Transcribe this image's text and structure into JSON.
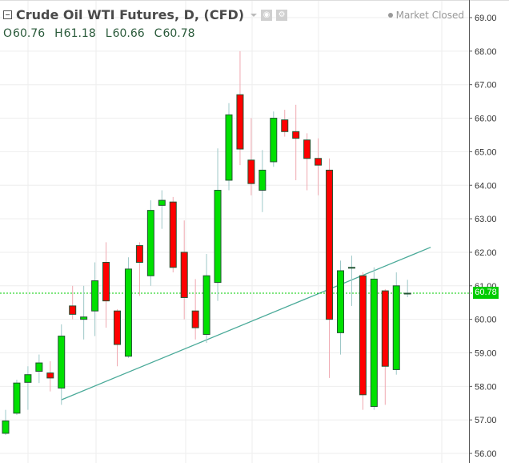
{
  "header": {
    "title": "Crude Oil WTI Futures, D, (CFD)",
    "collapse_icon": "minus-square-icon",
    "visibility_icon": "eye-icon",
    "settings_icon": "gear-icon",
    "ohlc": {
      "open_label": "O",
      "open": "60.76",
      "high_label": "H",
      "high": "61.18",
      "low_label": "L",
      "low": "60.66",
      "close_label": "C",
      "close": "60.78"
    },
    "market_status": "Market Closed"
  },
  "colors": {
    "up": "#00e000",
    "down": "#ff0000",
    "border": "#225533",
    "up_wick": "#9ec8c8",
    "down_wick": "#f0a8b0",
    "trendline": "#4aaa99",
    "price_line": "#00cc00",
    "grid": "#eeeeee"
  },
  "last_price_label": "60.78",
  "chart_data": {
    "type": "candlestick",
    "title": "Crude Oil WTI Futures, D, (CFD)",
    "timeframe": "D",
    "xlabel": "",
    "ylabel": "",
    "ylim": [
      55.75,
      69.3
    ],
    "y_ticks": [
      "69.00",
      "68.00",
      "67.00",
      "66.00",
      "65.00",
      "64.00",
      "63.00",
      "62.00",
      "61.00",
      "60.00",
      "59.00",
      "58.00",
      "57.00",
      "56.00"
    ],
    "grid": true,
    "last_price": 60.78,
    "candles": [
      {
        "o": 56.6,
        "h": 57.3,
        "l": 56.55,
        "c": 56.97
      },
      {
        "o": 57.2,
        "h": 58.2,
        "l": 57.15,
        "c": 58.1
      },
      {
        "o": 58.12,
        "h": 58.6,
        "l": 57.3,
        "c": 58.35
      },
      {
        "o": 58.45,
        "h": 58.95,
        "l": 58.1,
        "c": 58.7
      },
      {
        "o": 58.4,
        "h": 58.75,
        "l": 57.85,
        "c": 58.25
      },
      {
        "o": 57.95,
        "h": 59.85,
        "l": 57.45,
        "c": 59.5
      },
      {
        "o": 60.4,
        "h": 61.0,
        "l": 60.0,
        "c": 60.15
      },
      {
        "o": 60.0,
        "h": 61.0,
        "l": 59.4,
        "c": 60.07
      },
      {
        "o": 60.25,
        "h": 61.7,
        "l": 59.5,
        "c": 61.15
      },
      {
        "o": 61.7,
        "h": 62.3,
        "l": 59.75,
        "c": 60.55
      },
      {
        "o": 60.25,
        "h": 60.3,
        "l": 58.6,
        "c": 59.25
      },
      {
        "o": 58.9,
        "h": 61.85,
        "l": 58.85,
        "c": 61.5
      },
      {
        "o": 62.2,
        "h": 62.3,
        "l": 60.7,
        "c": 61.7
      },
      {
        "o": 61.3,
        "h": 63.55,
        "l": 61.0,
        "c": 63.25
      },
      {
        "o": 63.4,
        "h": 63.85,
        "l": 62.7,
        "c": 63.55
      },
      {
        "o": 63.5,
        "h": 63.65,
        "l": 61.4,
        "c": 61.55
      },
      {
        "o": 62.0,
        "h": 62.95,
        "l": 60.0,
        "c": 60.65
      },
      {
        "o": 60.25,
        "h": 61.2,
        "l": 59.4,
        "c": 59.75
      },
      {
        "o": 59.55,
        "h": 61.95,
        "l": 59.3,
        "c": 61.3
      },
      {
        "o": 61.1,
        "h": 65.1,
        "l": 60.55,
        "c": 63.85
      },
      {
        "o": 64.15,
        "h": 66.45,
        "l": 63.85,
        "c": 66.1
      },
      {
        "o": 66.7,
        "h": 68.0,
        "l": 64.6,
        "c": 65.08
      },
      {
        "o": 64.75,
        "h": 66.0,
        "l": 63.7,
        "c": 64.05
      },
      {
        "o": 63.85,
        "h": 65.05,
        "l": 63.2,
        "c": 64.45
      },
      {
        "o": 64.7,
        "h": 66.2,
        "l": 64.55,
        "c": 66.0
      },
      {
        "o": 65.95,
        "h": 66.25,
        "l": 65.45,
        "c": 65.6
      },
      {
        "o": 65.6,
        "h": 66.4,
        "l": 64.15,
        "c": 65.4
      },
      {
        "o": 65.35,
        "h": 65.55,
        "l": 63.85,
        "c": 64.8
      },
      {
        "o": 64.8,
        "h": 65.4,
        "l": 63.7,
        "c": 64.6
      },
      {
        "o": 64.45,
        "h": 64.8,
        "l": 58.25,
        "c": 60.0
      },
      {
        "o": 59.6,
        "h": 61.75,
        "l": 58.95,
        "c": 61.45
      },
      {
        "o": 61.55,
        "h": 61.9,
        "l": 60.4,
        "c": 61.55
      },
      {
        "o": 61.3,
        "h": 61.4,
        "l": 57.3,
        "c": 57.75
      },
      {
        "o": 57.4,
        "h": 61.55,
        "l": 57.3,
        "c": 61.2
      },
      {
        "o": 60.85,
        "h": 60.9,
        "l": 57.45,
        "c": 58.6
      },
      {
        "o": 58.5,
        "h": 61.4,
        "l": 58.35,
        "c": 61.0
      },
      {
        "o": 60.76,
        "h": 61.18,
        "l": 60.66,
        "c": 60.78
      }
    ],
    "annotations": [
      {
        "type": "trendline",
        "from": {
          "index": 5,
          "price": 57.6
        },
        "to": {
          "index": 37,
          "price": 62.15
        }
      },
      {
        "type": "horizontal_dashed",
        "price": 60.78,
        "label": "60.78"
      }
    ]
  }
}
